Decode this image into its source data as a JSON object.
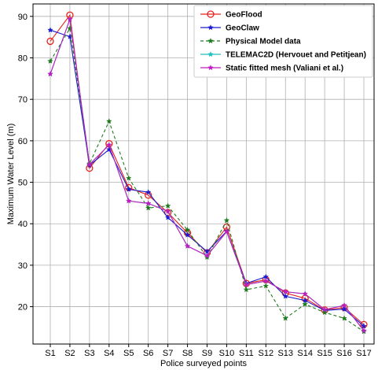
{
  "chart_data": {
    "type": "line",
    "title": "",
    "xlabel": "Police surveyed points",
    "ylabel": "Maximum Water Level (m)",
    "categories": [
      "S1",
      "S2",
      "S3",
      "S4",
      "S5",
      "S6",
      "S7",
      "S8",
      "S9",
      "S10",
      "S11",
      "S12",
      "S13",
      "S14",
      "S15",
      "S16",
      "S17"
    ],
    "ylim": [
      11,
      93
    ],
    "yticks": [
      20,
      30,
      40,
      50,
      60,
      70,
      80,
      90
    ],
    "grid": true,
    "legend_position": "top-right",
    "series": [
      {
        "name": "GeoFlood",
        "color": "#e8221c",
        "dash": "solid",
        "marker": "open-circle",
        "values": [
          84.0,
          90.3,
          53.4,
          59.3,
          48.7,
          46.9,
          42.7,
          37.8,
          33.0,
          39.2,
          25.6,
          26.5,
          23.3,
          22.0,
          19.2,
          19.8,
          15.7
        ]
      },
      {
        "name": "GeoClaw",
        "color": "#1b1bd0",
        "dash": "solid",
        "marker": "star",
        "values": [
          86.7,
          85.1,
          54.1,
          57.9,
          48.3,
          47.6,
          41.5,
          37.3,
          33.3,
          38.2,
          25.6,
          27.2,
          22.5,
          21.5,
          19.1,
          19.4,
          15.3
        ]
      },
      {
        "name": "Physical Model data",
        "color": "#1f7a1f",
        "dash": "dashed",
        "marker": "star",
        "values": [
          79.2,
          87.1,
          54.5,
          64.7,
          51.0,
          43.8,
          44.3,
          38.5,
          31.9,
          40.8,
          24.1,
          25.0,
          17.2,
          20.6,
          18.6,
          17.2,
          14.0
        ]
      },
      {
        "name": "TELEMAC2D (Hervouet and Petitjean)",
        "color": "#1fbfbf",
        "dash": "solid",
        "marker": "star",
        "values": [
          76.1,
          89.3,
          54.3,
          59.0,
          45.5,
          44.9,
          43.0,
          34.6,
          32.3,
          38.1,
          25.3,
          26.2,
          23.6,
          23.1,
          19.3,
          20.3,
          14.2
        ]
      },
      {
        "name": "Static fitted mesh (Valiani et al.)",
        "color": "#c01bc0",
        "dash": "solid",
        "marker": "star",
        "values": [
          76.1,
          89.3,
          54.3,
          59.0,
          45.5,
          44.9,
          43.0,
          34.6,
          32.3,
          38.1,
          25.3,
          26.2,
          23.6,
          23.1,
          19.3,
          20.3,
          14.2
        ]
      }
    ]
  }
}
